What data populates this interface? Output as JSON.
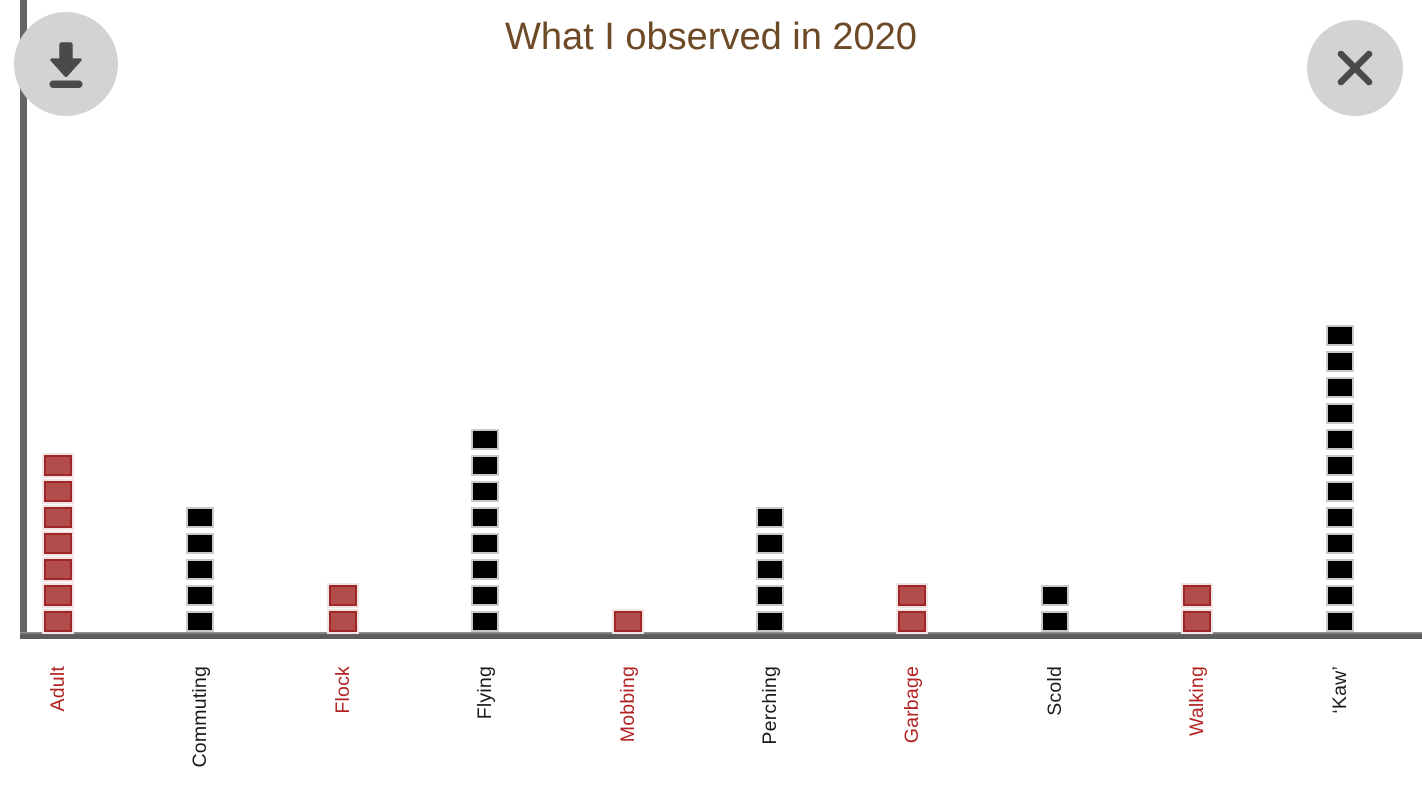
{
  "header": {
    "title": "What I observed in 2020"
  },
  "controls": {
    "download_button": "download-icon",
    "close_button": "close-icon"
  },
  "colors": {
    "background": "#ffffff",
    "title_text": "#6d4926",
    "axis": "#646464",
    "button_background": "#d3d3d3",
    "button_glyph": "#4a4a4a"
  },
  "chart_data": {
    "type": "bar",
    "subtype": "waffle-pictograph",
    "title": "What I observed in 2020",
    "xlabel": "",
    "ylabel": "",
    "grid": false,
    "legend_position": "none",
    "square_unit_value": 1,
    "categories": [
      "Adult",
      "Commuting",
      "Flock",
      "Flying",
      "Mobbing",
      "Perching",
      "Garbage",
      "Scold",
      "Walking",
      "‘Kaw’"
    ],
    "values": [
      7,
      5,
      2,
      8,
      1,
      5,
      2,
      2,
      2,
      12
    ],
    "colors": [
      "red",
      "black",
      "red",
      "black",
      "red",
      "black",
      "red",
      "black",
      "red",
      "black"
    ],
    "palette": {
      "red_fill": "#b34c4c",
      "red_border": "#a12626",
      "red_label": "#b22222",
      "black_fill": "#000000",
      "black_border": "#c9c9c9",
      "black_label": "#1a1a1a"
    }
  }
}
